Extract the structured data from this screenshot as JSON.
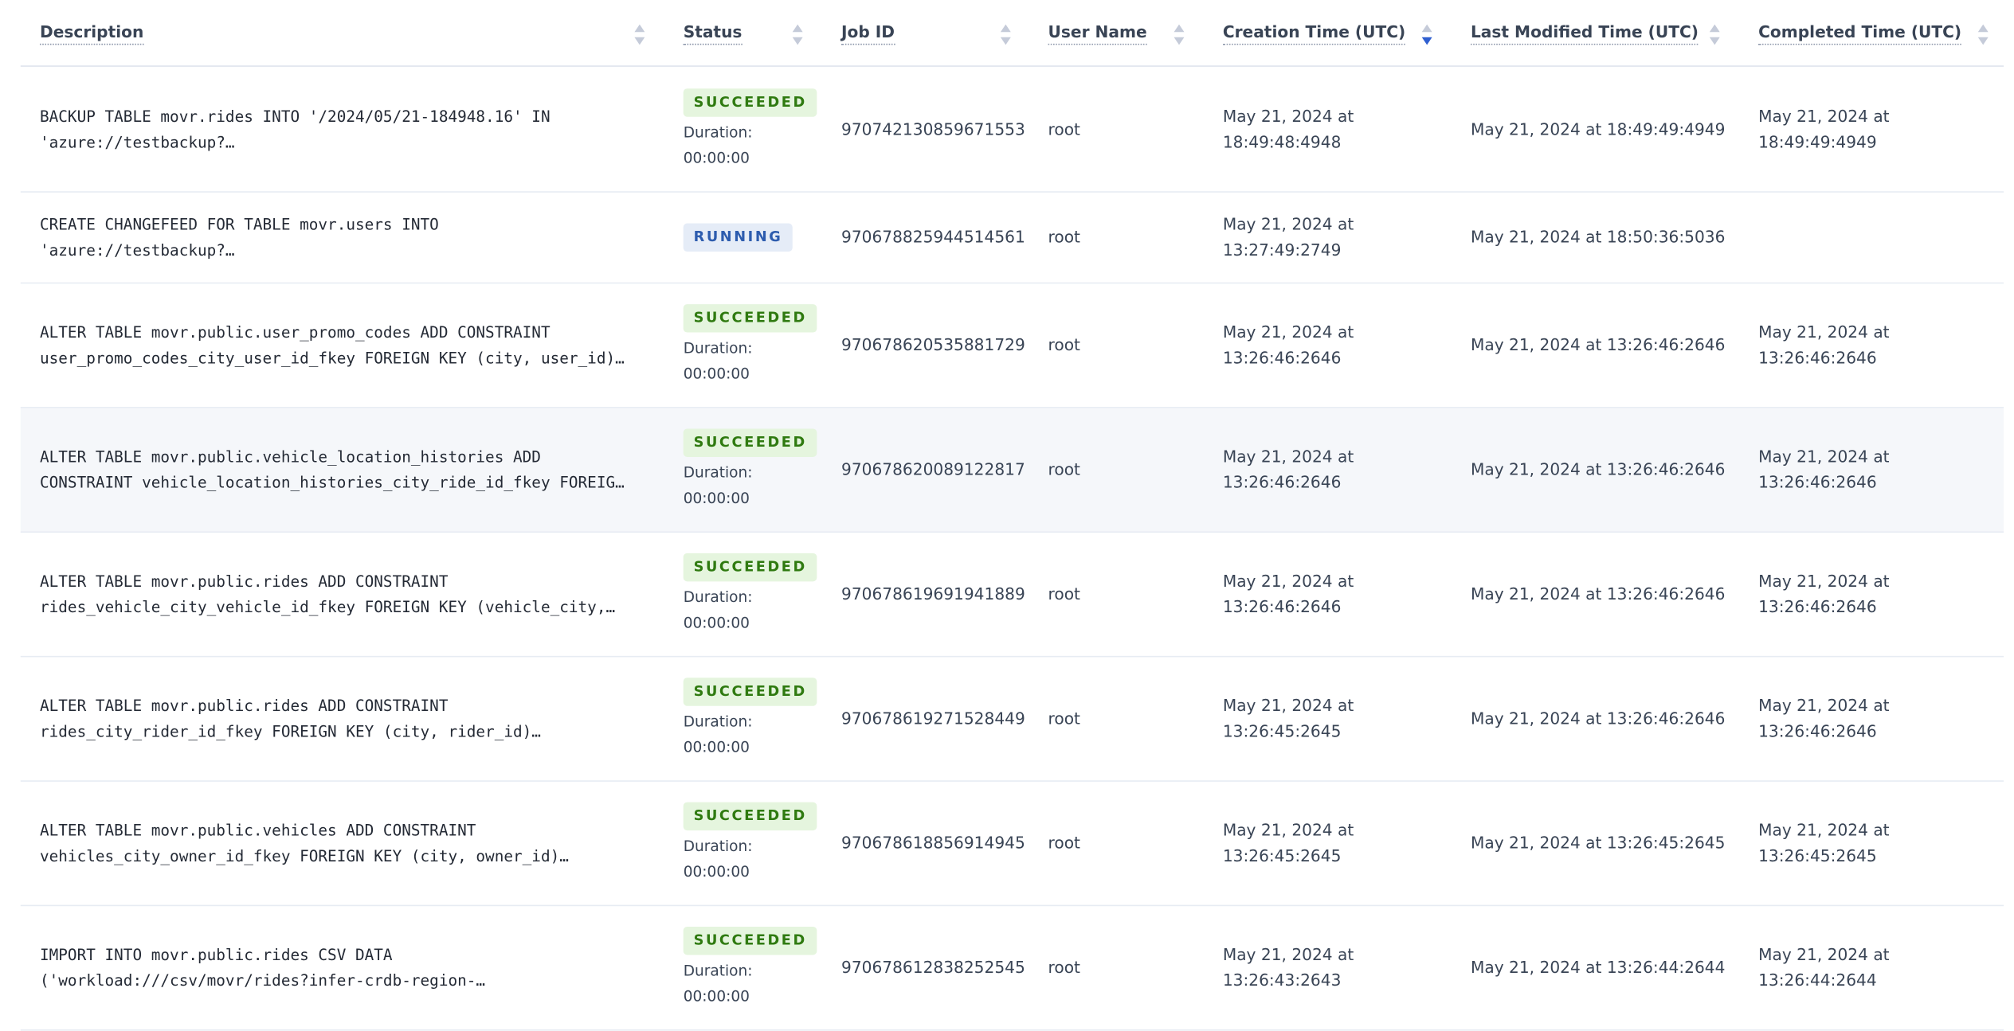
{
  "table": {
    "columns": [
      "Description",
      "Status",
      "Job ID",
      "User Name",
      "Creation Time (UTC)",
      "Last Modified Time (UTC)",
      "Completed Time (UTC)"
    ],
    "rows": [
      {
        "description": [
          "BACKUP TABLE movr.rides INTO '/2024/05/21-184948.16' IN",
          "'azure://testbackup?…"
        ],
        "status": "SUCCEEDED",
        "duration_label": "Duration:",
        "duration": "00:00:00",
        "job_id": "970742130859671553",
        "user": "root",
        "creation_time": "May 21, 2024 at 18:49:48:4948",
        "last_modified": "May 21, 2024 at 18:49:49:4949",
        "completed": "May 21, 2024 at 18:49:49:4949"
      },
      {
        "description": [
          "CREATE CHANGEFEED FOR TABLE movr.users INTO",
          "'azure://testbackup?…"
        ],
        "status": "RUNNING",
        "job_id": "970678825944514561",
        "user": "root",
        "creation_time": "May 21, 2024 at 13:27:49:2749",
        "last_modified": "May 21, 2024 at 18:50:36:5036"
      },
      {
        "description": [
          "ALTER TABLE movr.public.user_promo_codes ADD CONSTRAINT",
          "user_promo_codes_city_user_id_fkey FOREIGN KEY (city, user_id)…"
        ],
        "status": "SUCCEEDED",
        "duration_label": "Duration:",
        "duration": "00:00:00",
        "job_id": "970678620535881729",
        "user": "root",
        "creation_time": "May 21, 2024 at 13:26:46:2646",
        "last_modified": "May 21, 2024 at 13:26:46:2646",
        "completed": "May 21, 2024 at 13:26:46:2646"
      },
      {
        "description": [
          "ALTER TABLE movr.public.vehicle_location_histories ADD",
          "CONSTRAINT vehicle_location_histories_city_ride_id_fkey FOREIG…"
        ],
        "status": "SUCCEEDED",
        "duration_label": "Duration:",
        "duration": "00:00:00",
        "job_id": "970678620089122817",
        "user": "root",
        "creation_time": "May 21, 2024 at 13:26:46:2646",
        "last_modified": "May 21, 2024 at 13:26:46:2646",
        "completed": "May 21, 2024 at 13:26:46:2646"
      },
      {
        "description": [
          "ALTER TABLE movr.public.rides ADD CONSTRAINT",
          "rides_vehicle_city_vehicle_id_fkey FOREIGN KEY (vehicle_city,…"
        ],
        "status": "SUCCEEDED",
        "duration_label": "Duration:",
        "duration": "00:00:00",
        "job_id": "970678619691941889",
        "user": "root",
        "creation_time": "May 21, 2024 at 13:26:46:2646",
        "last_modified": "May 21, 2024 at 13:26:46:2646",
        "completed": "May 21, 2024 at 13:26:46:2646"
      },
      {
        "description": [
          "ALTER TABLE movr.public.rides ADD CONSTRAINT",
          "rides_city_rider_id_fkey FOREIGN KEY (city, rider_id)…"
        ],
        "status": "SUCCEEDED",
        "duration_label": "Duration:",
        "duration": "00:00:00",
        "job_id": "970678619271528449",
        "user": "root",
        "creation_time": "May 21, 2024 at 13:26:45:2645",
        "last_modified": "May 21, 2024 at 13:26:46:2646",
        "completed": "May 21, 2024 at 13:26:46:2646"
      },
      {
        "description": [
          "ALTER TABLE movr.public.vehicles ADD CONSTRAINT",
          "vehicles_city_owner_id_fkey FOREIGN KEY (city, owner_id)…"
        ],
        "status": "SUCCEEDED",
        "duration_label": "Duration:",
        "duration": "00:00:00",
        "job_id": "970678618856914945",
        "user": "root",
        "creation_time": "May 21, 2024 at 13:26:45:2645",
        "last_modified": "May 21, 2024 at 13:26:45:2645",
        "completed": "May 21, 2024 at 13:26:45:2645"
      },
      {
        "description": [
          "IMPORT INTO movr.public.rides CSV DATA",
          "('workload:///csv/movr/rides?infer-crdb-region-…"
        ],
        "status": "SUCCEEDED",
        "duration_label": "Duration:",
        "duration": "00:00:00",
        "job_id": "970678612838252545",
        "user": "root",
        "creation_time": "May 21, 2024 at 13:26:43:2643",
        "last_modified": "May 21, 2024 at 13:26:44:2644",
        "completed": "May 21, 2024 at 13:26:44:2644"
      }
    ]
  }
}
